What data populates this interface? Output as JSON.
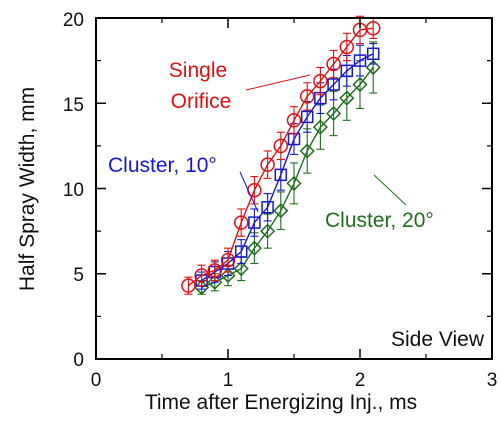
{
  "chart_data": {
    "type": "scatter",
    "title": "",
    "xlabel": "Time after Energizing Inj., ms",
    "ylabel": "Half Spray Width, mm",
    "xlim": [
      0,
      3
    ],
    "ylim": [
      0,
      20
    ],
    "x_ticks": [
      "0",
      "1",
      "2",
      "3"
    ],
    "y_ticks": [
      "0",
      "5",
      "10",
      "15",
      "20"
    ],
    "grid": false,
    "legend": "none",
    "corner_label": "Side View",
    "series": [
      {
        "name": "Single Orifice",
        "label_lines": [
          "Single",
          "Orifice"
        ],
        "color": "#e01010",
        "marker": "circle",
        "x": [
          0.7,
          0.8,
          0.9,
          1.0,
          1.1,
          1.2,
          1.3,
          1.4,
          1.5,
          1.6,
          1.7,
          1.8,
          1.9,
          2.0,
          2.1
        ],
        "y": [
          4.3,
          4.9,
          5.2,
          5.8,
          8.0,
          9.9,
          11.4,
          12.5,
          14.0,
          15.4,
          16.3,
          17.3,
          18.3,
          19.3,
          19.4
        ],
        "err": [
          0.5,
          0.6,
          0.6,
          0.7,
          0.8,
          0.8,
          0.8,
          0.8,
          0.8,
          0.8,
          0.8,
          0.8,
          0.8,
          0.8,
          0.6
        ]
      },
      {
        "name": "Cluster, 10°",
        "label_lines": [
          "Cluster, 10°"
        ],
        "color": "#1818cc",
        "marker": "square",
        "x": [
          0.8,
          0.9,
          1.0,
          1.1,
          1.2,
          1.3,
          1.4,
          1.5,
          1.6,
          1.7,
          1.8,
          1.9,
          2.0,
          2.1
        ],
        "y": [
          4.6,
          5.1,
          5.6,
          6.3,
          8.0,
          8.9,
          10.8,
          12.9,
          14.2,
          15.3,
          16.1,
          16.9,
          17.5,
          17.9
        ],
        "err": [
          0.5,
          0.6,
          0.7,
          0.7,
          0.8,
          0.8,
          0.9,
          0.9,
          0.9,
          0.9,
          0.9,
          0.9,
          0.9,
          0.6
        ]
      },
      {
        "name": "Cluster, 20°",
        "label_lines": [
          "Cluster, 20°"
        ],
        "color": "#1e6e1e",
        "marker": "diamond",
        "x": [
          0.8,
          0.9,
          1.0,
          1.1,
          1.2,
          1.3,
          1.4,
          1.5,
          1.6,
          1.7,
          1.8,
          1.9,
          2.0,
          2.1
        ],
        "y": [
          4.2,
          4.5,
          4.9,
          5.3,
          6.5,
          7.5,
          8.7,
          10.3,
          12.2,
          13.6,
          14.4,
          15.3,
          16.1,
          17.1
        ],
        "err": [
          0.4,
          0.5,
          0.6,
          0.7,
          0.9,
          1.0,
          1.1,
          1.2,
          1.3,
          1.3,
          1.3,
          1.3,
          1.4,
          1.5
        ]
      }
    ]
  }
}
